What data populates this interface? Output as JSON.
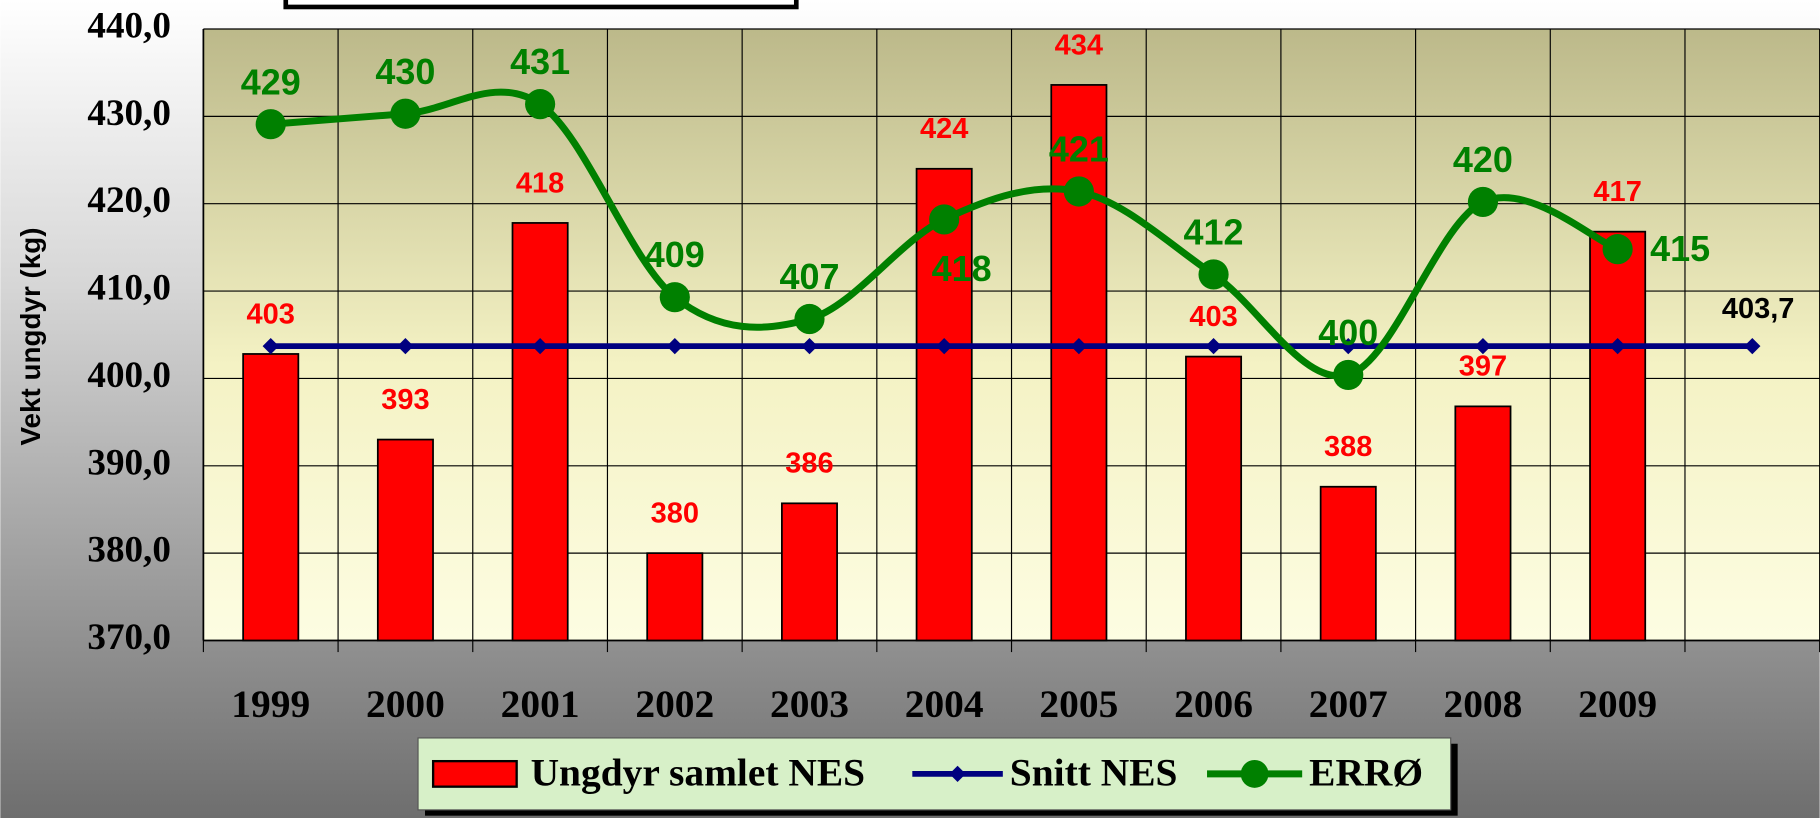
{
  "chart_data": {
    "type": "bar",
    "y_label": "Vekt ungdyr (kg)",
    "categories": [
      "1999",
      "2000",
      "2001",
      "2002",
      "2003",
      "2004",
      "2005",
      "2006",
      "2007",
      "2008",
      "2009",
      null
    ],
    "series": [
      {
        "name": "Ungdyr samlet NES",
        "type": "bar",
        "color": "#ff0000",
        "values": [
          402.8,
          393.0,
          417.8,
          380.0,
          385.7,
          424.0,
          433.6,
          402.5,
          387.6,
          396.8,
          416.8,
          null
        ],
        "value_labels": [
          "403",
          "393",
          "418",
          "380",
          "386",
          "424",
          "434",
          "403",
          "388",
          "397",
          "417",
          null
        ]
      },
      {
        "name": "Snitt NES",
        "type": "line",
        "color": "#000080",
        "values": [
          403.7,
          403.7,
          403.7,
          403.7,
          403.7,
          403.7,
          403.7,
          403.7,
          403.7,
          403.7,
          403.7,
          403.7
        ],
        "value_labels": [
          null,
          null,
          null,
          null,
          null,
          null,
          null,
          null,
          null,
          null,
          null,
          "403,7"
        ]
      },
      {
        "name": "ERRØ",
        "type": "line",
        "color": "#008000",
        "values": [
          429.1,
          430.3,
          431.4,
          409.3,
          406.8,
          418.2,
          421.4,
          411.9,
          400.4,
          420.2,
          414.8,
          null
        ],
        "value_labels": [
          "429",
          "430",
          "431",
          "409",
          "407",
          "418",
          "421",
          "412",
          "400",
          "420",
          "415",
          null
        ]
      }
    ],
    "ylim": [
      370,
      440
    ],
    "yticks": [
      {
        "value": 370,
        "label": "370,0"
      },
      {
        "value": 380,
        "label": "380,0"
      },
      {
        "value": 390,
        "label": "390,0"
      },
      {
        "value": 400,
        "label": "400,0"
      },
      {
        "value": 410,
        "label": "410,0"
      },
      {
        "value": 420,
        "label": "420,0"
      },
      {
        "value": 430,
        "label": "430,0"
      },
      {
        "value": 440,
        "label": "440,0"
      }
    ],
    "grid": true,
    "legend": "bottom"
  }
}
